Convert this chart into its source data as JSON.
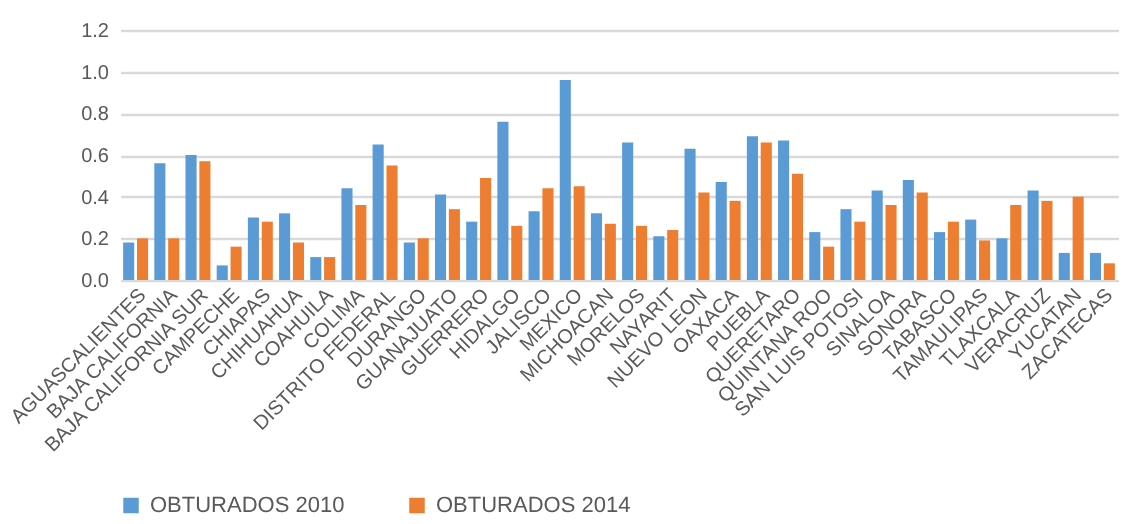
{
  "chart_data": {
    "type": "bar",
    "categories": [
      "AGUASCALIENTES",
      "BAJA CALIFORNIA",
      "BAJA CALIFORNIA SUR",
      "CAMPECHE",
      "CHIAPAS",
      "CHIHUAHUA",
      "COAHUILA",
      "COLIMA",
      "DISTRITO FEDERAL",
      "DURANGO",
      "GUANAJUATO",
      "GUERRERO",
      "HIDALGO",
      "JALISCO",
      "MEXICO",
      "MICHOACAN",
      "MORELOS",
      "NAYARIT",
      "NUEVO LEON",
      "OAXACA",
      "PUEBLA",
      "QUERETARO",
      "QUINTANA ROO",
      "SAN  LUIS POTOSI",
      "SINALOA",
      "SONORA",
      "TABASCO",
      "TAMAULIPAS",
      "TLAXCALA",
      "VERACRUZ",
      "YUCATAN",
      "ZACATECAS"
    ],
    "series": [
      {
        "name": "OBTURADOS 2010",
        "color": "#5b9bd5",
        "values": [
          0.18,
          0.56,
          0.6,
          0.07,
          0.3,
          0.32,
          0.11,
          0.44,
          0.65,
          0.18,
          0.41,
          0.28,
          0.76,
          0.33,
          0.96,
          0.32,
          0.66,
          0.21,
          0.63,
          0.47,
          0.69,
          0.67,
          0.23,
          0.34,
          0.43,
          0.48,
          0.23,
          0.29,
          0.2,
          0.43,
          0.13,
          0.13
        ]
      },
      {
        "name": "OBTURADOS 2014",
        "color": "#ed7d31",
        "values": [
          0.2,
          0.2,
          0.57,
          0.16,
          0.28,
          0.18,
          0.11,
          0.36,
          0.55,
          0.2,
          0.34,
          0.49,
          0.26,
          0.44,
          0.45,
          0.27,
          0.26,
          0.24,
          0.42,
          0.38,
          0.66,
          0.51,
          0.16,
          0.28,
          0.36,
          0.42,
          0.28,
          0.19,
          0.36,
          0.38,
          0.4,
          0.08
        ]
      }
    ],
    "ylim": [
      0,
      1.2
    ],
    "yticks": [
      {
        "value": 0,
        "label": "0.0"
      },
      {
        "value": 0.2,
        "label": "0.2"
      },
      {
        "value": 0.4,
        "label": "0.4"
      },
      {
        "value": 0.6,
        "label": "0.6"
      },
      {
        "value": 0.8,
        "label": "0.8"
      },
      {
        "value": 1,
        "label": "1.0"
      },
      {
        "value": 1.2,
        "label": "1.2"
      }
    ],
    "grid": "y",
    "legend": "bottom"
  }
}
